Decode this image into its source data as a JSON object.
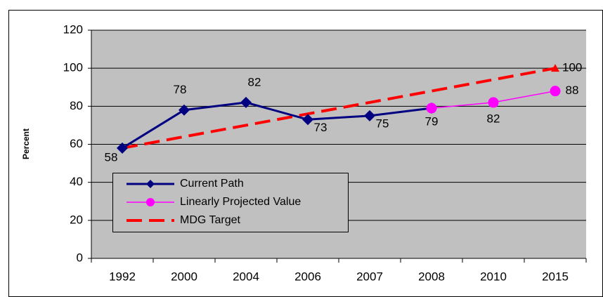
{
  "chart_data": {
    "type": "line",
    "y_label": "Percent",
    "categories": [
      "1992",
      "2000",
      "2004",
      "2006",
      "2007",
      "2008",
      "2010",
      "2015"
    ],
    "series": [
      {
        "name": "Current Path",
        "color": "#000080",
        "marker": "diamond",
        "dashed": false,
        "values": [
          58,
          78,
          82,
          73,
          75,
          79,
          null,
          null
        ]
      },
      {
        "name": "Linearly Projected Value",
        "color": "#ff00ff",
        "marker": "circle",
        "dashed": false,
        "values": [
          null,
          null,
          null,
          null,
          null,
          79,
          82,
          88
        ]
      },
      {
        "name": "MDG Target",
        "color": "#ff0000",
        "marker": "none",
        "dashed": true,
        "values": [
          58,
          64,
          70,
          76,
          82,
          88,
          94,
          100
        ]
      }
    ],
    "ylim": [
      0,
      120
    ],
    "yticks": [
      0,
      20,
      40,
      60,
      80,
      100,
      120
    ],
    "grid": true
  }
}
